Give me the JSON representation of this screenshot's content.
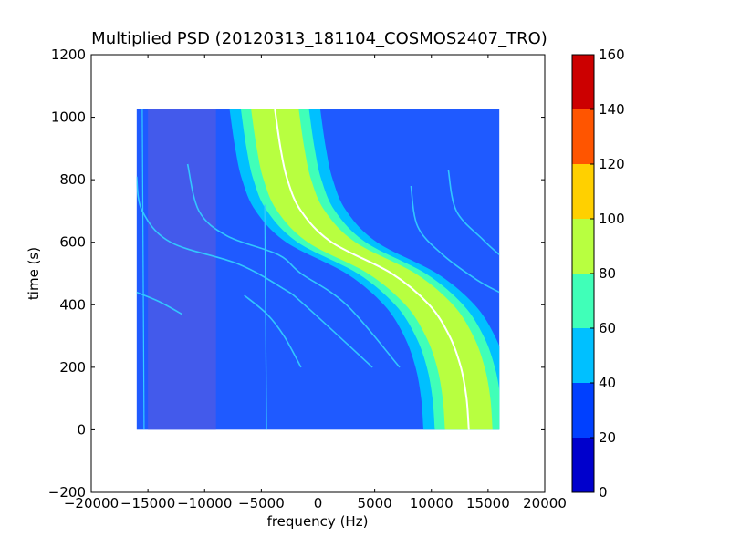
{
  "chart_data": {
    "type": "heatmap",
    "title": "Multiplied PSD (20120313_181104_COSMOS2407_TRO)",
    "xlabel": "frequency (Hz)",
    "ylabel": "time (s)",
    "xlim": [
      -20000,
      20000
    ],
    "ylim": [
      -200,
      1200
    ],
    "xticks": [
      -20000,
      -15000,
      -10000,
      -5000,
      0,
      5000,
      10000,
      15000,
      20000
    ],
    "xtick_labels": [
      "−20000",
      "−15000",
      "−10000",
      "−5000",
      "0",
      "5000",
      "10000",
      "15000",
      "20000"
    ],
    "yticks": [
      -200,
      0,
      200,
      400,
      600,
      800,
      1000,
      1200
    ],
    "ytick_labels": [
      "−200",
      "0",
      "200",
      "400",
      "600",
      "800",
      "1000",
      "1200"
    ],
    "grid": false,
    "data_extent": {
      "freq": [
        -16000,
        16000
      ],
      "time": [
        0,
        1025
      ]
    },
    "colorbar": {
      "range": [
        0,
        160
      ],
      "ticks": [
        0,
        20,
        40,
        60,
        80,
        100,
        120,
        140,
        160
      ],
      "levels": [
        {
          "min": 0,
          "max": 20,
          "color": "#0000cc"
        },
        {
          "min": 20,
          "max": 40,
          "color": "#0040ff"
        },
        {
          "min": 40,
          "max": 60,
          "color": "#00c0ff"
        },
        {
          "min": 60,
          "max": 80,
          "color": "#40ffb8"
        },
        {
          "min": 80,
          "max": 100,
          "color": "#b8ff40"
        },
        {
          "min": 100,
          "max": 120,
          "color": "#ffd000"
        },
        {
          "min": 120,
          "max": 140,
          "color": "#ff5500"
        },
        {
          "min": 140,
          "max": 160,
          "color": "#cc0000"
        }
      ]
    },
    "background_color": "#1f5aff",
    "noise_band": {
      "freq": [
        -15000,
        -9000
      ],
      "color": "#4a5ae8"
    },
    "main_curve": {
      "description_level": "S-shaped Doppler track",
      "points": [
        {
          "t": 1025,
          "f": -3800
        },
        {
          "t": 900,
          "f": -3300
        },
        {
          "t": 800,
          "f": -2700
        },
        {
          "t": 700,
          "f": -1500
        },
        {
          "t": 600,
          "f": 1200
        },
        {
          "t": 500,
          "f": 6500
        },
        {
          "t": 400,
          "f": 9800
        },
        {
          "t": 300,
          "f": 11600
        },
        {
          "t": 200,
          "f": 12600
        },
        {
          "t": 100,
          "f": 13100
        },
        {
          "t": 0,
          "f": 13300
        }
      ],
      "bands": [
        {
          "level": 40,
          "halfwidth_hz": 4000,
          "color": "#00c0ff"
        },
        {
          "level": 60,
          "halfwidth_hz": 3000,
          "color": "#40ffb8"
        },
        {
          "level": 80,
          "halfwidth_hz": 2100,
          "color": "#b8ff40"
        }
      ],
      "line_color": "#ffffff"
    },
    "harmonic_curves": [
      {
        "points": [
          {
            "t": 810,
            "f": -16000
          },
          {
            "t": 700,
            "f": -15500
          },
          {
            "t": 600,
            "f": -13000
          },
          {
            "t": 530,
            "f": -7000
          },
          {
            "t": 450,
            "f": -3000
          },
          {
            "t": 400,
            "f": -1200
          },
          {
            "t": 200,
            "f": 4800
          }
        ]
      },
      {
        "points": [
          {
            "t": 850,
            "f": -11500
          },
          {
            "t": 700,
            "f": -10500
          },
          {
            "t": 620,
            "f": -8000
          },
          {
            "t": 560,
            "f": -3500
          },
          {
            "t": 500,
            "f": -1500
          },
          {
            "t": 400,
            "f": 2500
          },
          {
            "t": 200,
            "f": 7200
          }
        ]
      },
      {
        "points": [
          {
            "t": 780,
            "f": 8200
          },
          {
            "t": 650,
            "f": 8800
          },
          {
            "t": 560,
            "f": 11000
          },
          {
            "t": 480,
            "f": 14000
          },
          {
            "t": 440,
            "f": 16000
          }
        ]
      },
      {
        "points": [
          {
            "t": 830,
            "f": 11500
          },
          {
            "t": 700,
            "f": 12200
          },
          {
            "t": 610,
            "f": 14500
          },
          {
            "t": 560,
            "f": 16000
          }
        ]
      },
      {
        "points": [
          {
            "t": 440,
            "f": -16000
          },
          {
            "t": 410,
            "f": -14000
          },
          {
            "t": 370,
            "f": -12000
          }
        ]
      },
      {
        "points": [
          {
            "t": 430,
            "f": -6500
          },
          {
            "t": 370,
            "f": -4500
          },
          {
            "t": 300,
            "f": -3000
          },
          {
            "t": 200,
            "f": -1500
          }
        ]
      }
    ],
    "vertical_lines": [
      {
        "f": -15500,
        "t_top": 1025,
        "t_bottom": 0
      },
      {
        "f": -4700,
        "t_top": 720,
        "t_bottom": 0
      }
    ]
  }
}
